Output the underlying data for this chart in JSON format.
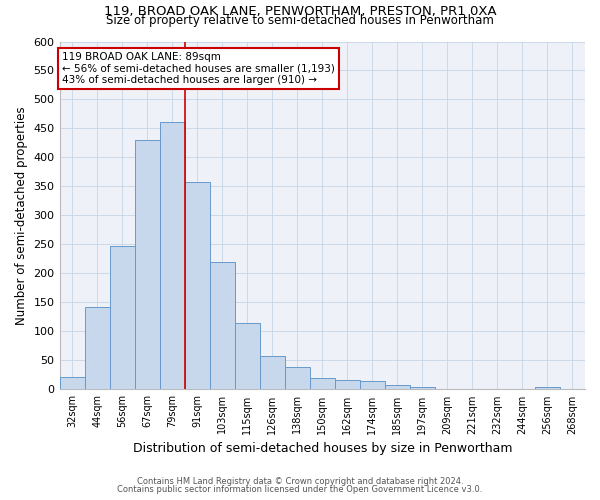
{
  "title_line1": "119, BROAD OAK LANE, PENWORTHAM, PRESTON, PR1 0XA",
  "title_line2": "Size of property relative to semi-detached houses in Penwortham",
  "xlabel": "Distribution of semi-detached houses by size in Penwortham",
  "ylabel": "Number of semi-detached properties",
  "footnote1": "Contains HM Land Registry data © Crown copyright and database right 2024.",
  "footnote2": "Contains public sector information licensed under the Open Government Licence v3.0.",
  "bar_labels": [
    "32sqm",
    "44sqm",
    "56sqm",
    "67sqm",
    "79sqm",
    "91sqm",
    "103sqm",
    "115sqm",
    "126sqm",
    "138sqm",
    "150sqm",
    "162sqm",
    "174sqm",
    "185sqm",
    "197sqm",
    "209sqm",
    "221sqm",
    "232sqm",
    "244sqm",
    "256sqm",
    "268sqm"
  ],
  "bar_heights": [
    22,
    142,
    248,
    430,
    462,
    357,
    220,
    115,
    57,
    38,
    20,
    16,
    14,
    8,
    5,
    0,
    0,
    0,
    0,
    5,
    0
  ],
  "bar_color": "#c8d8ec",
  "bar_edge_color": "#6699cc",
  "annotation_text": "119 BROAD OAK LANE: 89sqm\n← 56% of semi-detached houses are smaller (1,193)\n43% of semi-detached houses are larger (910) →",
  "annotation_box_color": "#ffffff",
  "annotation_box_edge": "#cc0000",
  "vline_x_index": 4,
  "vline_color": "#cc0000",
  "ylim": [
    0,
    600
  ],
  "yticks": [
    0,
    50,
    100,
    150,
    200,
    250,
    300,
    350,
    400,
    450,
    500,
    550,
    600
  ],
  "grid_color": "#c5d5e5",
  "background_color": "#eef2f8",
  "title1_fontsize": 9.5,
  "title2_fontsize": 8.5,
  "xlabel_fontsize": 9,
  "ylabel_fontsize": 8.5,
  "annot_fontsize": 7.5,
  "tick_fontsize": 7,
  "ytick_fontsize": 8
}
